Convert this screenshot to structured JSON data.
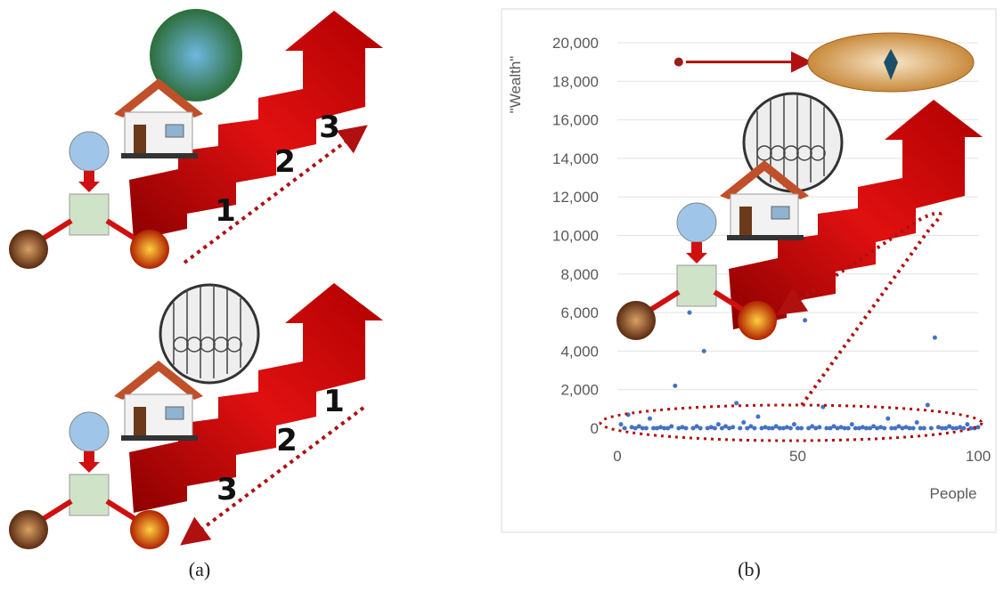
{
  "figure": {
    "panel_a": {
      "caption": "(a)",
      "steps_top": [
        "1",
        "2",
        "3"
      ],
      "steps_bottom": [
        "1",
        "2",
        "3"
      ]
    },
    "panel_b": {
      "caption": "(b)"
    }
  },
  "chart_data": {
    "type": "scatter",
    "ylabel": "\"Wealth\"",
    "xlabel": "People",
    "xlim": [
      0,
      100
    ],
    "ylim": [
      0,
      20000
    ],
    "xticks": [
      0,
      50,
      100
    ],
    "yticks": [
      0,
      {
        "value": 2000,
        "label": "2,000"
      },
      {
        "value": 4000,
        "label": "4,000"
      },
      {
        "value": 6000,
        "label": "6,000"
      },
      {
        "value": 8000,
        "label": "8,000"
      },
      {
        "value": 10000,
        "label": "10,000"
      },
      {
        "value": 12000,
        "label": "12,000"
      },
      {
        "value": 14000,
        "label": "14,000"
      },
      {
        "value": 16000,
        "label": "16,000"
      },
      {
        "value": 18000,
        "label": "18,000"
      },
      {
        "value": 20000,
        "label": "20,000"
      }
    ],
    "grid": true,
    "series": [
      {
        "color": "#4472c4",
        "x": [
          1,
          2,
          3,
          4,
          5,
          6,
          7,
          8,
          9,
          10,
          11,
          12,
          13,
          14,
          15,
          16,
          17,
          18,
          19,
          20,
          21,
          22,
          23,
          24,
          25,
          26,
          27,
          28,
          29,
          30,
          31,
          32,
          33,
          34,
          35,
          36,
          37,
          38,
          39,
          40,
          41,
          42,
          43,
          44,
          45,
          46,
          47,
          48,
          49,
          50,
          51,
          52,
          53,
          54,
          55,
          56,
          57,
          58,
          59,
          60,
          61,
          62,
          63,
          64,
          65,
          66,
          67,
          68,
          69,
          70,
          71,
          72,
          73,
          74,
          75,
          76,
          77,
          78,
          79,
          80,
          81,
          82,
          83,
          84,
          85,
          86,
          87,
          88,
          89,
          90,
          91,
          92,
          93,
          94,
          95,
          96,
          97,
          98,
          99,
          100
        ],
        "values": [
          200,
          0,
          700,
          50,
          0,
          100,
          0,
          0,
          500,
          0,
          0,
          50,
          0,
          0,
          100,
          2200,
          0,
          50,
          0,
          6000,
          0,
          100,
          0,
          4000,
          0,
          50,
          0,
          200,
          0,
          100,
          0,
          50,
          1300,
          0,
          300,
          0,
          100,
          0,
          600,
          0,
          50,
          0,
          0,
          100,
          0,
          0,
          50,
          0,
          200,
          0,
          0,
          5600,
          0,
          100,
          0,
          50,
          1100,
          0,
          0,
          100,
          0,
          50,
          0,
          0,
          200,
          0,
          0,
          50,
          0,
          0,
          100,
          0,
          50,
          0,
          500,
          0,
          0,
          100,
          0,
          50,
          0,
          0,
          300,
          0,
          0,
          1200,
          0,
          4700,
          50,
          0,
          0,
          100,
          0,
          0,
          50,
          0,
          200,
          0,
          0,
          50
        ]
      },
      {
        "color": "#9b1c1c",
        "x": [
          17
        ],
        "values": [
          19000
        ]
      }
    ]
  }
}
